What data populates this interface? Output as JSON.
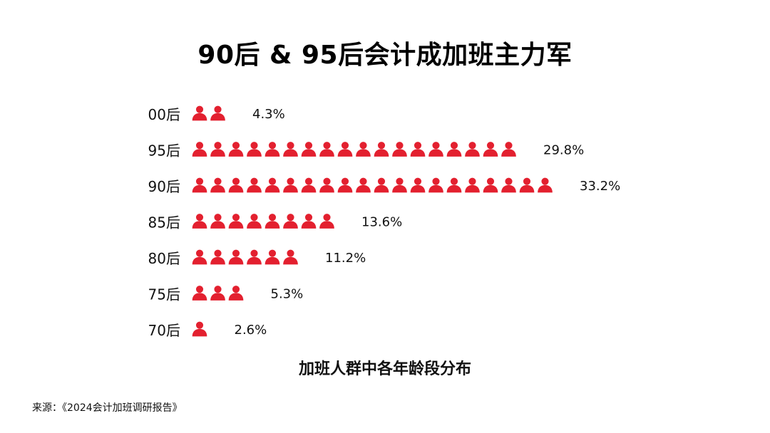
{
  "title": "90后 & 95后会计成加班主力军",
  "subtitle": "加班人群中各年龄段分布",
  "source": "来源：《2024会计加班调研报告》",
  "colors": {
    "icon": "#e3202f",
    "text": "#111111"
  },
  "icon_name": "person-icon",
  "chart_data": {
    "type": "bar",
    "style": "pictograph",
    "unit_per_icon": 1.65,
    "categories": [
      "00后",
      "95后",
      "90后",
      "85后",
      "80后",
      "75后",
      "70后"
    ],
    "values": [
      4.3,
      29.8,
      33.2,
      13.6,
      11.2,
      5.3,
      2.6
    ],
    "labels": [
      "4.3%",
      "29.8%",
      "33.2%",
      "13.6%",
      "11.2%",
      "5.3%",
      "2.6%"
    ],
    "title": "90后 & 95后会计成加班主力军",
    "xlabel": "加班人群中各年龄段分布",
    "ylabel": "",
    "legend": "none",
    "grid": false
  }
}
